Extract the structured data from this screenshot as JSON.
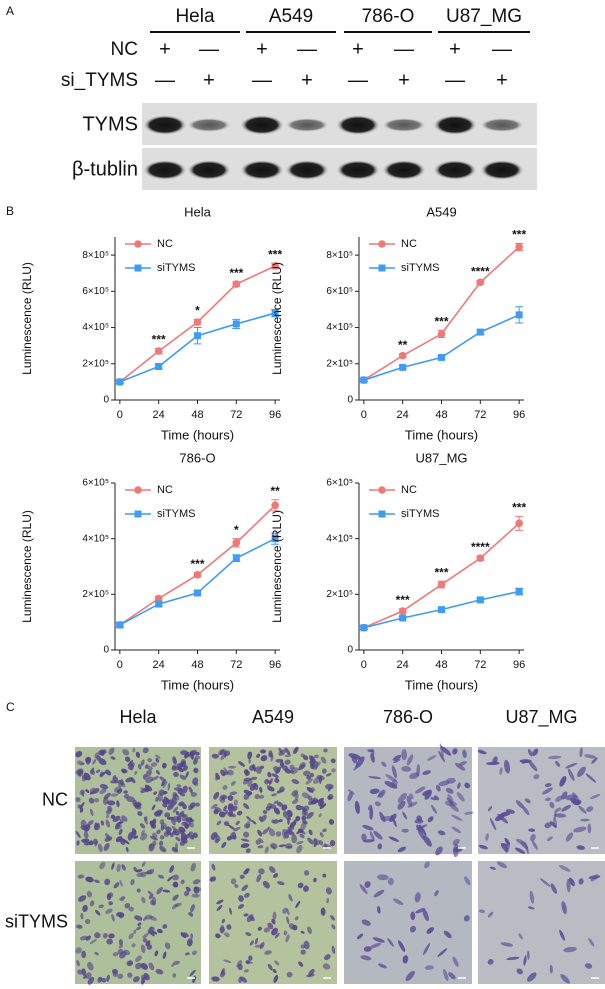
{
  "panel_a": {
    "label": "A",
    "cell_lines": [
      "Hela",
      "A549",
      "786-O",
      "U87_MG"
    ],
    "rows": [
      {
        "name": "NC",
        "signs": [
          "+",
          "—",
          "+",
          "—",
          "+",
          "—",
          "+",
          "—"
        ]
      },
      {
        "name": "si_TYMS",
        "signs": [
          "—",
          "+",
          "—",
          "+",
          "—",
          "+",
          "—",
          "+"
        ]
      }
    ],
    "blots": [
      "TYMS",
      "β-tublin"
    ]
  },
  "panel_b": {
    "label": "B"
  },
  "chart_data": [
    {
      "type": "line",
      "title": "Hela",
      "x_label": "Time (hours)",
      "y_label": "Luminescence (RLU)",
      "x": [
        0,
        24,
        48,
        72,
        96
      ],
      "xlim": [
        -3,
        99
      ],
      "xticks": [
        0,
        24,
        48,
        72,
        96
      ],
      "ylim": [
        0,
        900000
      ],
      "yticks": [
        0,
        {
          "value": 200000,
          "label": "2×10⁵"
        },
        {
          "value": 400000,
          "label": "4×10⁵"
        },
        {
          "value": 600000,
          "label": "6×10⁵"
        },
        {
          "value": 800000,
          "label": "8×10⁵"
        }
      ],
      "legend": "upper left",
      "series": [
        {
          "name": "NC",
          "color": "#f07878",
          "marker": "circle",
          "values": [
            100000,
            270000,
            430000,
            640000,
            740000
          ],
          "errors": [
            8000,
            15000,
            15000,
            12000,
            15000
          ]
        },
        {
          "name": "siTYMS",
          "color": "#3f9cf2",
          "marker": "square",
          "values": [
            100000,
            185000,
            355000,
            420000,
            480000
          ],
          "errors": [
            8000,
            10000,
            45000,
            25000,
            20000
          ]
        }
      ],
      "annotations": [
        {
          "x": 24,
          "text": "***"
        },
        {
          "x": 48,
          "text": "*"
        },
        {
          "x": 72,
          "text": "***"
        },
        {
          "x": 96,
          "text": "***"
        }
      ]
    },
    {
      "type": "line",
      "title": "A549",
      "x_label": "Time (hours)",
      "y_label": "Luminescence (RLU)",
      "x": [
        0,
        24,
        48,
        72,
        96
      ],
      "xlim": [
        -3,
        99
      ],
      "xticks": [
        0,
        24,
        48,
        72,
        96
      ],
      "ylim": [
        0,
        900000
      ],
      "yticks": [
        0,
        {
          "value": 200000,
          "label": "2×10⁵"
        },
        {
          "value": 400000,
          "label": "4×10⁵"
        },
        {
          "value": 600000,
          "label": "6×10⁵"
        },
        {
          "value": 800000,
          "label": "8×10⁵"
        }
      ],
      "legend": "upper left",
      "series": [
        {
          "name": "NC",
          "color": "#f07878",
          "marker": "circle",
          "values": [
            110000,
            245000,
            365000,
            650000,
            845000
          ],
          "errors": [
            8000,
            10000,
            20000,
            10000,
            20000
          ]
        },
        {
          "name": "siTYMS",
          "color": "#3f9cf2",
          "marker": "square",
          "values": [
            110000,
            180000,
            235000,
            375000,
            470000
          ],
          "errors": [
            8000,
            8000,
            10000,
            12000,
            45000
          ]
        }
      ],
      "annotations": [
        {
          "x": 24,
          "text": "**"
        },
        {
          "x": 48,
          "text": "***"
        },
        {
          "x": 72,
          "text": "****"
        },
        {
          "x": 96,
          "text": "***"
        }
      ]
    },
    {
      "type": "line",
      "title": "786-O",
      "x_label": "Time (hours)",
      "y_label": "Luminescence (RLU)",
      "x": [
        0,
        24,
        48,
        72,
        96
      ],
      "xlim": [
        -3,
        99
      ],
      "xticks": [
        0,
        24,
        48,
        72,
        96
      ],
      "ylim": [
        0,
        600000
      ],
      "yticks": [
        0,
        {
          "value": 200000,
          "label": "2×10⁵"
        },
        {
          "value": 400000,
          "label": "4×10⁵"
        },
        {
          "value": 600000,
          "label": "6×10⁵"
        }
      ],
      "legend": "upper left",
      "series": [
        {
          "name": "NC",
          "color": "#f07878",
          "marker": "circle",
          "values": [
            90000,
            185000,
            270000,
            385000,
            520000
          ],
          "errors": [
            8000,
            8000,
            8000,
            15000,
            20000
          ]
        },
        {
          "name": "siTYMS",
          "color": "#3f9cf2",
          "marker": "square",
          "values": [
            90000,
            165000,
            205000,
            330000,
            400000
          ],
          "errors": [
            8000,
            8000,
            8000,
            12000,
            20000
          ]
        }
      ],
      "annotations": [
        {
          "x": 48,
          "text": "***"
        },
        {
          "x": 72,
          "text": "*"
        },
        {
          "x": 96,
          "text": "**"
        }
      ]
    },
    {
      "type": "line",
      "title": "U87_MG",
      "x_label": "Time (hours)",
      "y_label": "Luminescence (RLU)",
      "x": [
        0,
        24,
        48,
        72,
        96
      ],
      "xlim": [
        -3,
        99
      ],
      "xticks": [
        0,
        24,
        48,
        72,
        96
      ],
      "ylim": [
        0,
        600000
      ],
      "yticks": [
        0,
        {
          "value": 200000,
          "label": "2×10⁵"
        },
        {
          "value": 400000,
          "label": "4×10⁵"
        },
        {
          "value": 600000,
          "label": "6×10⁵"
        }
      ],
      "legend": "upper left",
      "series": [
        {
          "name": "NC",
          "color": "#f07878",
          "marker": "circle",
          "values": [
            80000,
            140000,
            235000,
            330000,
            455000
          ],
          "errors": [
            6000,
            8000,
            12000,
            8000,
            25000
          ]
        },
        {
          "name": "siTYMS",
          "color": "#3f9cf2",
          "marker": "square",
          "values": [
            80000,
            115000,
            145000,
            180000,
            210000
          ],
          "errors": [
            6000,
            6000,
            6000,
            6000,
            12000
          ]
        }
      ],
      "annotations": [
        {
          "x": 24,
          "text": "***"
        },
        {
          "x": 48,
          "text": "***"
        },
        {
          "x": 72,
          "text": "****"
        },
        {
          "x": 96,
          "text": "***"
        }
      ]
    }
  ],
  "panel_c": {
    "label": "C",
    "columns": [
      "Hela",
      "A549",
      "786-O",
      "U87_MG"
    ],
    "rows": [
      "NC",
      "siTYMS"
    ]
  }
}
